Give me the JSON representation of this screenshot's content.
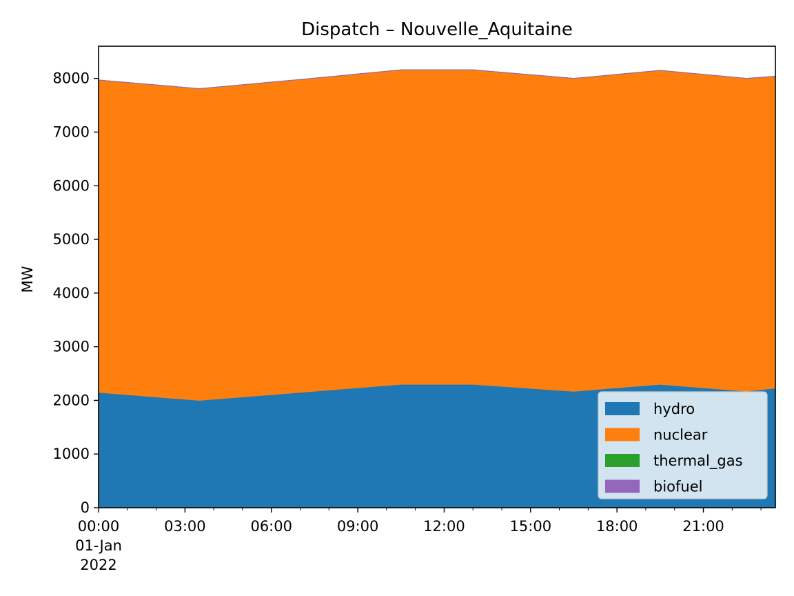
{
  "chart_data": {
    "type": "area",
    "stacked": true,
    "title": "Dispatch – Nouvelle_Aquitaine",
    "xlabel": "",
    "ylabel": "MW",
    "x": [
      "2022-01-01 00:00",
      "2022-01-01 03:30",
      "2022-01-01 07:00",
      "2022-01-01 10:30",
      "2022-01-01 13:00",
      "2022-01-01 16:30",
      "2022-01-01 19:30",
      "2022-01-01 22:30",
      "2022-01-01 23:30"
    ],
    "series": [
      {
        "name": "hydro",
        "color": "#1f77b4",
        "values": [
          2150,
          2000,
          2150,
          2300,
          2300,
          2170,
          2300,
          2170,
          2230
        ]
      },
      {
        "name": "nuclear",
        "color": "#ff7f0e",
        "values": [
          5820,
          5810,
          5830,
          5860,
          5860,
          5830,
          5850,
          5830,
          5810
        ]
      },
      {
        "name": "thermal_gas",
        "color": "#2ca02c",
        "values": [
          0,
          0,
          0,
          0,
          0,
          0,
          0,
          0,
          0
        ]
      },
      {
        "name": "biofuel",
        "color": "#9467bd",
        "values": [
          0,
          0,
          0,
          0,
          0,
          0,
          0,
          0,
          0
        ]
      }
    ],
    "xlim": [
      "2022-01-01 00:00",
      "2022-01-01 23:30"
    ],
    "ylim": [
      0,
      8600
    ],
    "yticks": [
      0,
      1000,
      2000,
      3000,
      4000,
      5000,
      6000,
      7000,
      8000
    ],
    "xticks": [
      {
        "at": "2022-01-01 00:00",
        "lines": [
          "00:00",
          "01-Jan",
          "2022"
        ]
      },
      {
        "at": "2022-01-01 03:00",
        "lines": [
          "03:00"
        ]
      },
      {
        "at": "2022-01-01 06:00",
        "lines": [
          "06:00"
        ]
      },
      {
        "at": "2022-01-01 09:00",
        "lines": [
          "09:00"
        ]
      },
      {
        "at": "2022-01-01 12:00",
        "lines": [
          "12:00"
        ]
      },
      {
        "at": "2022-01-01 15:00",
        "lines": [
          "15:00"
        ]
      },
      {
        "at": "2022-01-01 18:00",
        "lines": [
          "18:00"
        ]
      },
      {
        "at": "2022-01-01 21:00",
        "lines": [
          "21:00"
        ]
      }
    ],
    "grid": false,
    "legend": "lower-right"
  }
}
